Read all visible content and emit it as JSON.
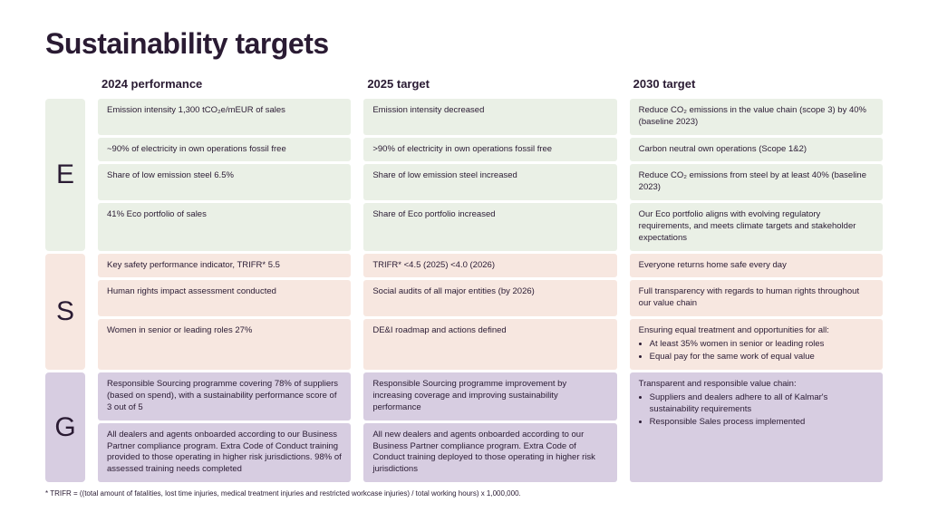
{
  "title": "Sustainability targets",
  "columns": [
    "2024 performance",
    "2025 target",
    "2030 target"
  ],
  "colors": {
    "e": "#eaf0e6",
    "s": "#f7e7e0",
    "g": "#d7cde1",
    "text": "#2a1b33",
    "bg": "#ffffff"
  },
  "E": {
    "label": "E",
    "rows": [
      {
        "c2024": "Emission intensity 1,300 tCO₂e/mEUR of sales",
        "c2025": "Emission intensity decreased",
        "c2030": "Reduce CO₂ emissions in the value chain (scope 3) by 40% (baseline 2023)"
      },
      {
        "c2024": "~90% of electricity in own operations fossil free",
        "c2025": ">90% of electricity in own operations fossil free",
        "c2030": "Carbon neutral own operations (Scope 1&2)"
      },
      {
        "c2024": "Share of low emission steel 6.5%",
        "c2025": "Share of low emission steel increased",
        "c2030": "Reduce CO₂ emissions from steel by at least 40% (baseline 2023)"
      },
      {
        "c2024": "41% Eco portfolio of sales",
        "c2025": "Share of Eco portfolio increased",
        "c2030": "Our Eco portfolio aligns with evolving regulatory requirements, and meets climate targets and stakeholder expectations"
      }
    ]
  },
  "S": {
    "label": "S",
    "rows": [
      {
        "c2024": "Key safety performance indicator, TRIFR*  5.5",
        "c2025": "TRIFR* <4.5 (2025) <4.0 (2026)",
        "c2030": "Everyone returns home safe every day"
      },
      {
        "c2024": "Human rights impact assessment conducted",
        "c2025": "Social audits of all major entities (by 2026)",
        "c2030": "Full transparency with regards to human rights throughout our value chain"
      },
      {
        "c2024": "Women in senior or leading roles 27%",
        "c2025": "DE&I roadmap and actions defined",
        "c2030_intro": "Ensuring equal treatment and opportunities for all:",
        "c2030_b1": "At least 35% women in senior or leading roles",
        "c2030_b2": "Equal pay for the same work of equal value"
      }
    ]
  },
  "G": {
    "label": "G",
    "rows": [
      {
        "c2024": "Responsible Sourcing programme covering 78% of suppliers (based on spend), with a sustainability performance score of 3 out of 5",
        "c2025": "Responsible Sourcing programme improvement by increasing coverage and improving sustainability performance"
      },
      {
        "c2024": "All dealers and agents onboarded according to our Business Partner compliance program. Extra Code of Conduct training provided to those operating in higher risk jurisdictions. 98% of assessed training needs completed",
        "c2025": "All new dealers and agents onboarded  according to our Business Partner compliance program. Extra Code of Conduct training deployed to those operating in higher risk jurisdictions"
      }
    ],
    "c2030_intro": "Transparent and responsible value chain:",
    "c2030_b1": "Suppliers and dealers adhere to all of Kalmar's sustainability requirements",
    "c2030_b2": "Responsible Sales process implemented"
  },
  "footnote": "* TRIFR = ((total amount of fatalities, lost time injuries, medical treatment injuries and restricted workcase injuries) / total working hours) x 1,000,000."
}
